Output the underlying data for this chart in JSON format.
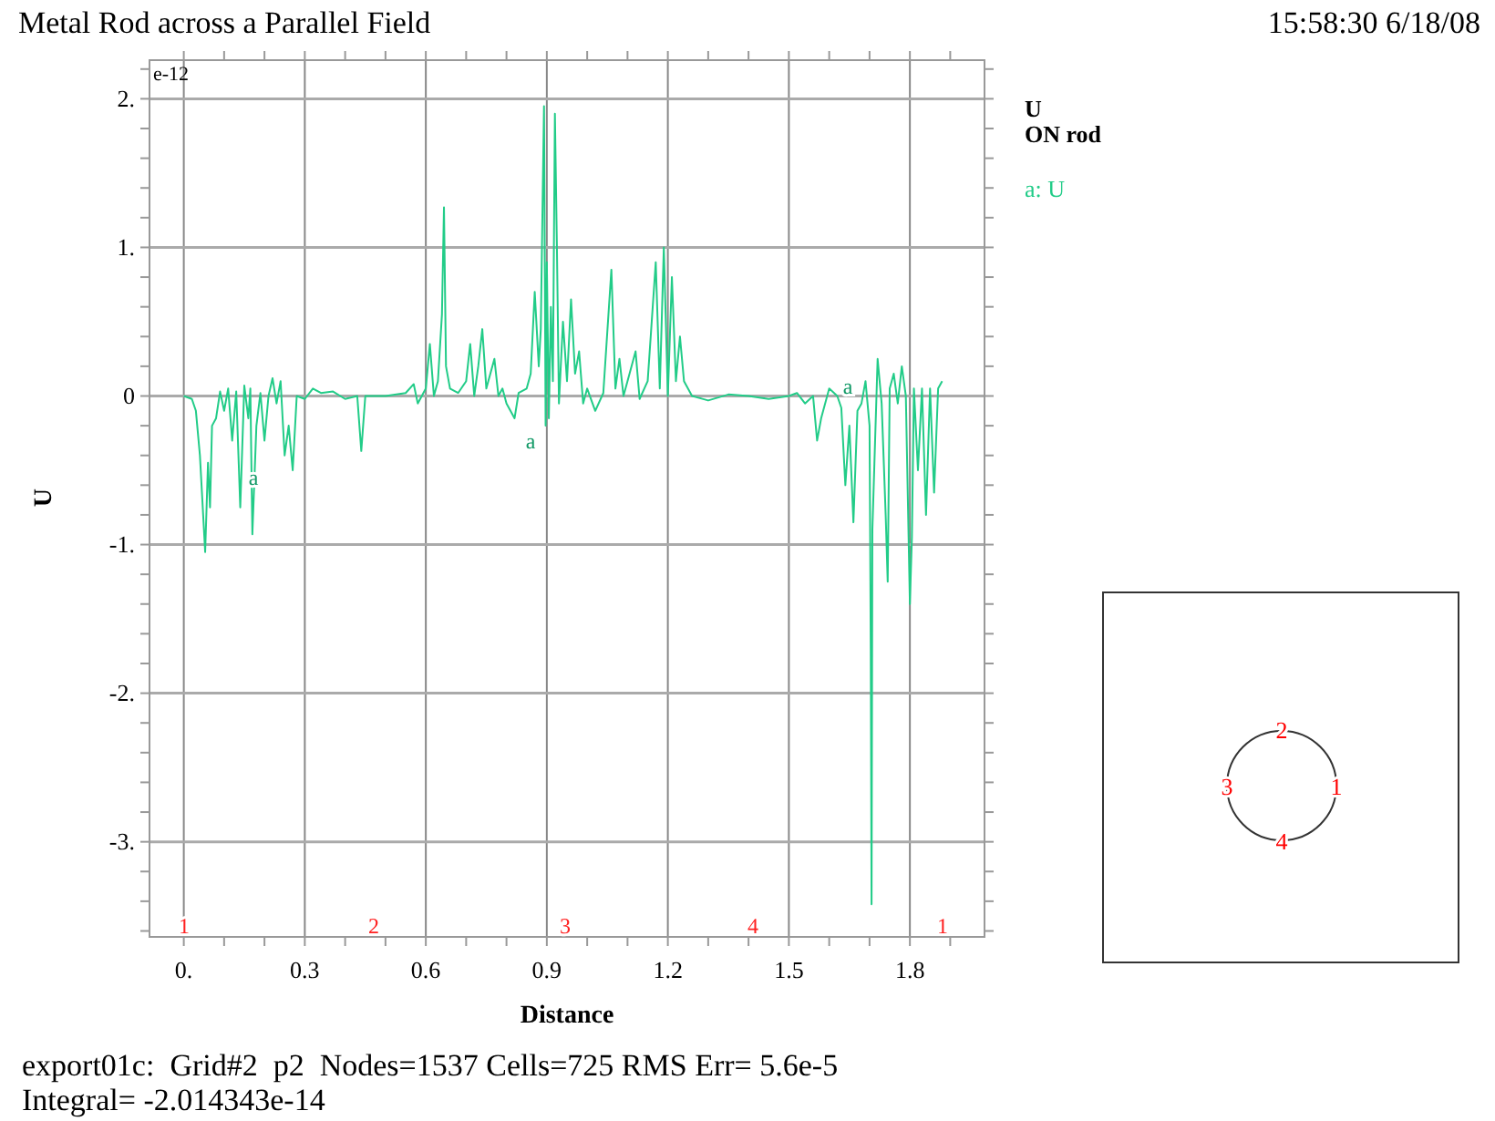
{
  "chart_data": {
    "type": "line",
    "title": "Metal Rod across a Parallel Field",
    "xlabel": "Distance",
    "ylabel": "U",
    "legend_title": "U\nON rod",
    "legend": "right",
    "grid": true,
    "line_style": "solid",
    "marker": "none",
    "xlim": [
      -0.085,
      1.985
    ],
    "ylim": [
      -3.64,
      2.26
    ],
    "xticks": [
      {
        "value": 0,
        "label": "0."
      },
      {
        "value": 0.1,
        "label": null
      },
      {
        "value": 0.2,
        "label": null
      },
      0.3,
      {
        "value": 0.4,
        "label": null
      },
      {
        "value": 0.5,
        "label": null
      },
      0.6,
      {
        "value": 0.7,
        "label": null
      },
      {
        "value": 0.8,
        "label": null
      },
      0.9,
      {
        "value": 1.0,
        "label": null
      },
      {
        "value": 1.1,
        "label": null
      },
      1.2,
      {
        "value": 1.3,
        "label": null
      },
      {
        "value": 1.4,
        "label": null
      },
      1.5,
      {
        "value": 1.6,
        "label": null
      },
      {
        "value": 1.7,
        "label": null
      },
      1.8,
      {
        "value": 1.9,
        "label": null
      }
    ],
    "yticks": [
      {
        "value": -3.6,
        "label": null
      },
      {
        "value": -3.4,
        "label": null
      },
      {
        "value": -3.2,
        "label": null
      },
      {
        "value": -3,
        "label": "-3."
      },
      {
        "value": -2.8,
        "label": null
      },
      {
        "value": -2.6,
        "label": null
      },
      {
        "value": -2.4,
        "label": null
      },
      {
        "value": -2.2,
        "label": null
      },
      {
        "value": -2,
        "label": "-2."
      },
      {
        "value": -1.8,
        "label": null
      },
      {
        "value": -1.6,
        "label": null
      },
      {
        "value": -1.4,
        "label": null
      },
      {
        "value": -1.2,
        "label": null
      },
      {
        "value": -1,
        "label": "-1."
      },
      {
        "value": -0.8,
        "label": null
      },
      {
        "value": -0.6,
        "label": null
      },
      {
        "value": -0.4,
        "label": null
      },
      {
        "value": -0.2,
        "label": null
      },
      0,
      {
        "value": 0.2,
        "label": null
      },
      {
        "value": 0.4,
        "label": null
      },
      {
        "value": 0.6,
        "label": null
      },
      {
        "value": 0.8,
        "label": null
      },
      {
        "value": 1,
        "label": "1."
      },
      {
        "value": 1.2,
        "label": null
      },
      {
        "value": 1.4,
        "label": null
      },
      {
        "value": 1.6,
        "label": null
      },
      {
        "value": 1.8,
        "label": null
      },
      {
        "value": 2,
        "label": "2."
      },
      {
        "value": 2.2,
        "label": null
      }
    ],
    "series": [
      {
        "name": "a: U",
        "color": "#22cc88",
        "x": [
          0,
          0.02,
          0.03,
          0.04,
          0.05,
          0.053,
          0.06,
          0.065,
          0.07,
          0.08,
          0.09,
          0.1,
          0.11,
          0.12,
          0.13,
          0.14,
          0.15,
          0.16,
          0.165,
          0.17,
          0.18,
          0.19,
          0.2,
          0.21,
          0.22,
          0.23,
          0.24,
          0.25,
          0.26,
          0.27,
          0.28,
          0.3,
          0.32,
          0.34,
          0.37,
          0.4,
          0.43,
          0.44,
          0.45,
          0.5,
          0.55,
          0.57,
          0.58,
          0.6,
          0.61,
          0.62,
          0.63,
          0.64,
          0.645,
          0.65,
          0.66,
          0.68,
          0.7,
          0.71,
          0.72,
          0.73,
          0.74,
          0.75,
          0.77,
          0.78,
          0.79,
          0.8,
          0.82,
          0.83,
          0.85,
          0.86,
          0.87,
          0.88,
          0.885,
          0.89,
          0.893,
          0.897,
          0.9,
          0.905,
          0.91,
          0.915,
          0.92,
          0.925,
          0.93,
          0.94,
          0.95,
          0.96,
          0.97,
          0.98,
          0.99,
          1.0,
          1.02,
          1.04,
          1.06,
          1.07,
          1.08,
          1.09,
          1.1,
          1.12,
          1.13,
          1.15,
          1.17,
          1.18,
          1.19,
          1.2,
          1.21,
          1.22,
          1.23,
          1.24,
          1.26,
          1.3,
          1.35,
          1.4,
          1.45,
          1.5,
          1.52,
          1.54,
          1.56,
          1.57,
          1.58,
          1.6,
          1.62,
          1.63,
          1.64,
          1.65,
          1.66,
          1.67,
          1.68,
          1.69,
          1.7,
          1.703,
          1.705,
          1.707,
          1.72,
          1.73,
          1.74,
          1.745,
          1.75,
          1.76,
          1.77,
          1.78,
          1.79,
          1.8,
          1.805,
          1.81,
          1.82,
          1.83,
          1.84,
          1.85,
          1.86,
          1.87,
          1.88
        ],
        "values": [
          0,
          -0.02,
          -0.1,
          -0.4,
          -0.9,
          -1.05,
          -0.45,
          -0.75,
          -0.2,
          -0.15,
          0.03,
          -0.1,
          0.05,
          -0.3,
          0.03,
          -0.75,
          0.07,
          -0.15,
          0.05,
          -0.93,
          -0.2,
          0.02,
          -0.3,
          0,
          0.12,
          -0.05,
          0.1,
          -0.4,
          -0.2,
          -0.5,
          0,
          -0.02,
          0.05,
          0.02,
          0.03,
          -0.02,
          0,
          -0.37,
          0,
          0,
          0.02,
          0.08,
          -0.05,
          0.05,
          0.35,
          0,
          0.1,
          0.55,
          1.27,
          0.2,
          0.05,
          0.02,
          0.1,
          0.35,
          0,
          0.2,
          0.45,
          0.05,
          0.25,
          0,
          0.05,
          -0.05,
          -0.15,
          0.02,
          0.05,
          0.15,
          0.7,
          0.2,
          0.45,
          1.4,
          1.95,
          -0.2,
          0.9,
          -0.15,
          0.6,
          0.1,
          1.9,
          1.0,
          -0.05,
          0.5,
          0.1,
          0.65,
          0.15,
          0.3,
          -0.05,
          0.05,
          -0.1,
          0.02,
          0.85,
          0.05,
          0.25,
          0,
          0.1,
          0.3,
          -0.02,
          0.1,
          0.9,
          0.05,
          1.0,
          0,
          0.8,
          0.1,
          0.4,
          0.1,
          0,
          -0.03,
          0.01,
          0,
          -0.02,
          0,
          0.02,
          -0.05,
          0,
          -0.3,
          -0.15,
          0.05,
          0,
          -0.08,
          -0.6,
          -0.2,
          -0.85,
          -0.1,
          -0.05,
          0.1,
          -0.2,
          -1.7,
          -3.42,
          -0.9,
          0.25,
          -0.05,
          -0.8,
          -1.25,
          0.05,
          0.15,
          -0.05,
          0.2,
          0,
          -1.4,
          -0.95,
          0.05,
          -0.5,
          0.05,
          -0.8,
          0.05,
          -0.65,
          0.05,
          0.1
        ]
      }
    ],
    "annotations": [
      "e-12",
      "15:58:30 6/18/08",
      "export01c:  Grid#2  p2  Nodes=1537 Cells=725 RMS Err= 5.6e-5",
      "Integral= -2.014343e-14",
      "1",
      "2",
      "3",
      "4",
      "1",
      "2",
      "3",
      "4",
      "1",
      "a",
      "a",
      "a"
    ]
  }
}
